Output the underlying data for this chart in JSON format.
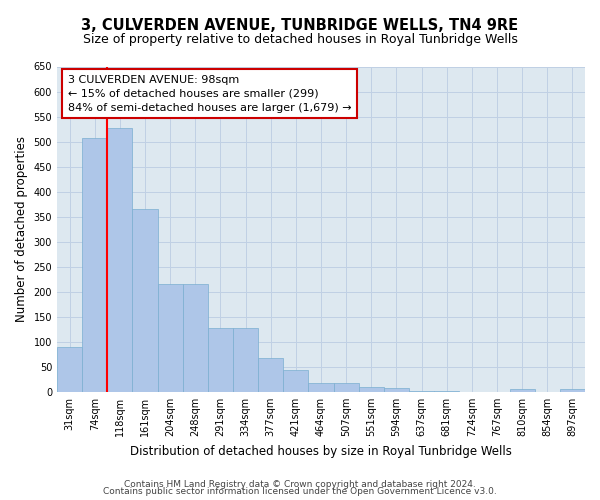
{
  "title": "3, CULVERDEN AVENUE, TUNBRIDGE WELLS, TN4 9RE",
  "subtitle": "Size of property relative to detached houses in Royal Tunbridge Wells",
  "xlabel": "Distribution of detached houses by size in Royal Tunbridge Wells",
  "ylabel": "Number of detached properties",
  "footer1": "Contains HM Land Registry data © Crown copyright and database right 2024.",
  "footer2": "Contains public sector information licensed under the Open Government Licence v3.0.",
  "annotation_line1": "3 CULVERDEN AVENUE: 98sqm",
  "annotation_line2": "← 15% of detached houses are smaller (299)",
  "annotation_line3": "84% of semi-detached houses are larger (1,679) →",
  "bar_values": [
    90,
    508,
    528,
    365,
    216,
    216,
    127,
    127,
    68,
    43,
    18,
    18,
    10,
    8,
    2,
    1,
    0,
    0,
    5,
    0,
    5
  ],
  "tick_labels": [
    "31sqm",
    "74sqm",
    "118sqm",
    "161sqm",
    "204sqm",
    "248sqm",
    "291sqm",
    "334sqm",
    "377sqm",
    "421sqm",
    "464sqm",
    "507sqm",
    "551sqm",
    "594sqm",
    "637sqm",
    "681sqm",
    "724sqm",
    "767sqm",
    "810sqm",
    "854sqm",
    "897sqm"
  ],
  "bar_color": "#aec6e8",
  "bar_edge_color": "#7aaed0",
  "red_line_x": 1.5,
  "ylim": [
    0,
    650
  ],
  "yticks": [
    0,
    50,
    100,
    150,
    200,
    250,
    300,
    350,
    400,
    450,
    500,
    550,
    600,
    650
  ],
  "grid_color": "#c0d0e4",
  "bg_color": "#dde8f0",
  "annotation_box_color": "#cc0000",
  "title_fontsize": 10.5,
  "subtitle_fontsize": 9,
  "axis_label_fontsize": 8.5,
  "tick_fontsize": 7,
  "footer_fontsize": 6.5,
  "annotation_fontsize": 8
}
